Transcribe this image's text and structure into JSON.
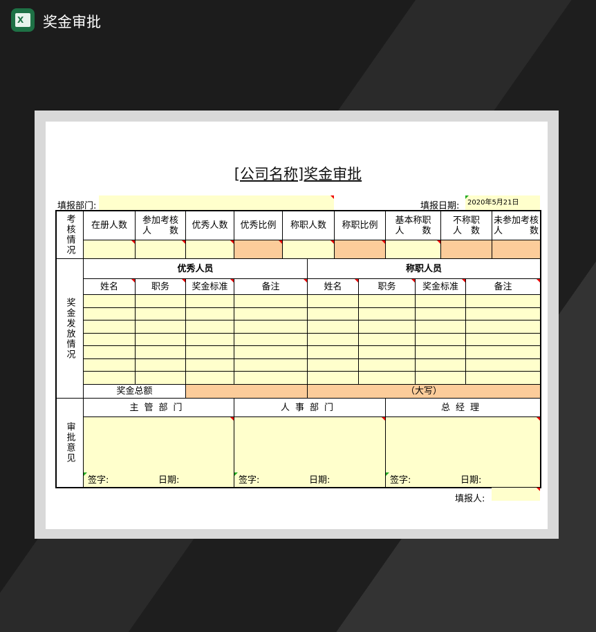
{
  "app": {
    "title": "奖金审批",
    "icon": "excel-icon",
    "icon_letter": "X"
  },
  "colors": {
    "cream": "#FFFFCC",
    "peach": "#FCCC9A",
    "marker": "#E00000"
  },
  "form": {
    "title": "[公司名称]奖金审批",
    "dept_label": "填报部门:",
    "dept_value": "",
    "date_label": "填报日期:",
    "date_value": "2020年5月21日",
    "reporter_label": "填报人:",
    "reporter_value": ""
  },
  "assessment": {
    "section_label": "考核情况",
    "headers": [
      "在册人数",
      "参加考核\n人　　数",
      "优秀人数",
      "优秀比例",
      "称职人数",
      "称职比例",
      "基本称职\n人　　数",
      "不称职\n人　数",
      "未参加考核\n人　　　数"
    ]
  },
  "bonus": {
    "section_label": "奖金发放情况",
    "excellent_title": "优秀人员",
    "competent_title": "称职人员",
    "sub_headers": [
      "姓名",
      "职务",
      "奖金标准",
      "备注",
      "姓名",
      "职务",
      "奖金标准",
      "备注"
    ],
    "total_label": "奖金总额",
    "total_value": "",
    "capital_label": "（大写）"
  },
  "approval": {
    "section_label": "审批意见",
    "depts": [
      "主管部门",
      "人事部门",
      "总经理"
    ],
    "sign_label": "签字:",
    "date_label": "日期:"
  }
}
